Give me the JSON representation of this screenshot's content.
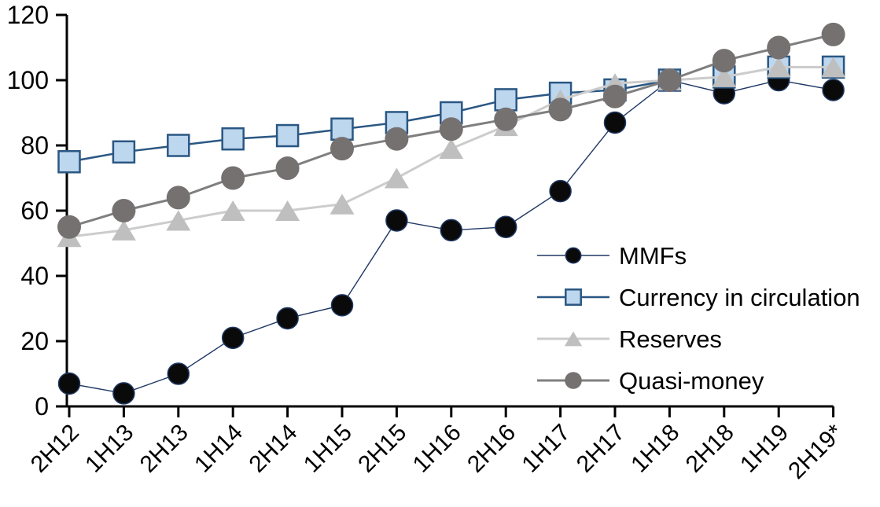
{
  "chart_data": {
    "type": "line",
    "title": "",
    "xlabel": "",
    "ylabel": "",
    "categories": [
      "2H12",
      "1H13",
      "2H13",
      "1H14",
      "2H14",
      "1H15",
      "2H15",
      "1H16",
      "2H16",
      "1H17",
      "2H17",
      "1H18",
      "2H18",
      "1H19",
      "2H19*"
    ],
    "series": [
      {
        "name": "MMFs",
        "marker": "circle",
        "marker_fill": "#0a0a0a",
        "marker_stroke": "#1f3864",
        "line_color": "#1f3864",
        "line_width": 1.4,
        "marker_size": 27,
        "values": [
          7,
          4,
          10,
          21,
          27,
          31,
          57,
          54,
          55,
          66,
          87,
          100,
          96,
          100,
          97
        ]
      },
      {
        "name": "Currency in circulation",
        "marker": "square",
        "marker_fill": "#bdd7ee",
        "marker_stroke": "#2a5783",
        "line_color": "#2a5783",
        "line_width": 2.5,
        "marker_size": 27,
        "values": [
          75,
          78,
          80,
          82,
          83,
          85,
          87,
          90,
          94,
          96,
          97,
          100,
          101,
          104,
          104
        ]
      },
      {
        "name": "Reserves",
        "marker": "triangle",
        "marker_fill": "#bfbfbf",
        "marker_stroke": "none",
        "line_color": "#cccccc",
        "line_width": 3,
        "marker_size": 31,
        "values": [
          52,
          54,
          57,
          60,
          60,
          62,
          70,
          79,
          86,
          94,
          99,
          100,
          101,
          104,
          104
        ]
      },
      {
        "name": "Quasi-money",
        "marker": "circle",
        "marker_fill": "#767171",
        "marker_stroke": "none",
        "line_color": "#7f7f7f",
        "line_width": 3,
        "marker_size": 30,
        "values": [
          55,
          60,
          64,
          70,
          73,
          79,
          82,
          85,
          88,
          91,
          95,
          100,
          106,
          110,
          114
        ]
      }
    ],
    "ylim": [
      0,
      120
    ],
    "yticks": [
      0,
      20,
      40,
      60,
      80,
      100,
      120
    ],
    "grid": false,
    "legend_position": "inside-right",
    "legend_labels": [
      "MMFs",
      "Currency in circulation",
      "Reserves",
      "Quasi-money"
    ],
    "axis_color": "#000000",
    "background": "#ffffff"
  }
}
